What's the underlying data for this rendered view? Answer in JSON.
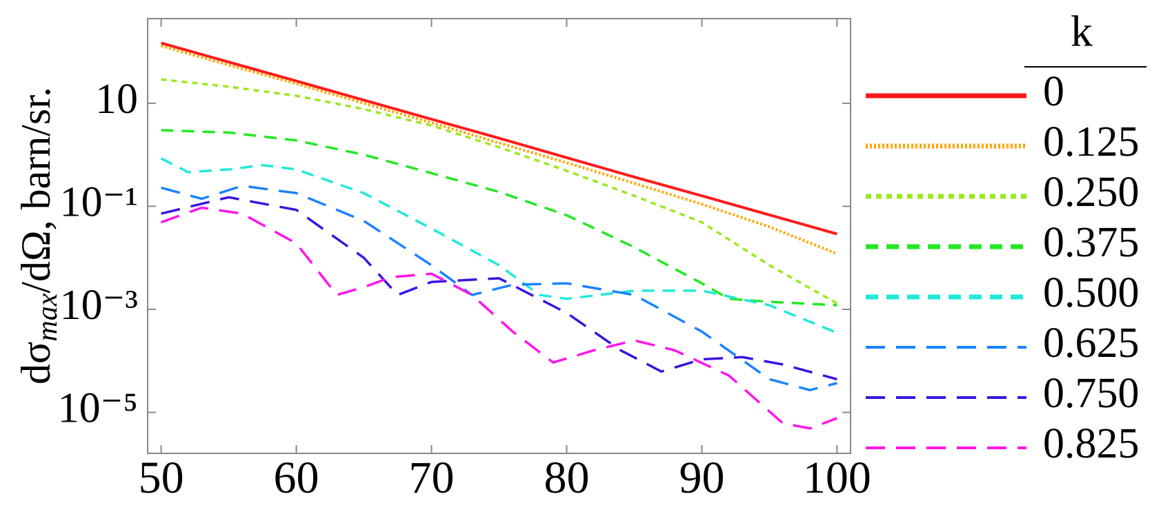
{
  "chart_data": {
    "type": "line",
    "y_label": [
      "dσ",
      "max",
      "/dΩ, barn/sr."
    ],
    "legend_title": "k",
    "y_scale": "log",
    "xlim": [
      49,
      101
    ],
    "xticks": [
      50,
      60,
      70,
      80,
      90,
      100
    ],
    "ylim": [
      1.6e-06,
      440
    ],
    "yticks": [
      {
        "value": 10,
        "label": "10"
      },
      {
        "value": 0.1,
        "label": "10⁻¹"
      },
      {
        "value": 0.001,
        "label": "10⁻³"
      },
      {
        "value": 1e-05,
        "label": "10⁻⁵"
      }
    ],
    "series": [
      {
        "name": "0",
        "color": "#ff1a1a",
        "style": "solid",
        "x": [
          50,
          55,
          60,
          65,
          70,
          75,
          80,
          85,
          90,
          95,
          100
        ],
        "values": [
          148,
          63,
          27,
          11.5,
          4.9,
          2.1,
          0.88,
          0.37,
          0.16,
          0.068,
          0.029
        ]
      },
      {
        "name": "0.125",
        "color": "#ffa500",
        "style": "dotted",
        "x": [
          50,
          55,
          60,
          65,
          70,
          75,
          80,
          85,
          90,
          95,
          100
        ],
        "values": [
          130,
          55,
          24,
          10,
          4.2,
          1.7,
          0.7,
          0.28,
          0.11,
          0.04,
          0.012
        ]
      },
      {
        "name": "0.250",
        "color": "#9be81e",
        "style": "short",
        "x": [
          50,
          55,
          60,
          65,
          70,
          75,
          80,
          85,
          90,
          95,
          100
        ],
        "values": [
          29,
          21,
          14,
          7.7,
          3.7,
          1.4,
          0.49,
          0.16,
          0.049,
          0.0072,
          0.0013
        ]
      },
      {
        "name": "0.375",
        "color": "#22e822",
        "style": "dashed",
        "x": [
          50,
          55,
          60,
          65,
          70,
          75,
          80,
          85,
          90,
          92,
          95,
          100
        ],
        "values": [
          3.0,
          2.7,
          1.9,
          1.0,
          0.44,
          0.19,
          0.067,
          0.016,
          0.0032,
          0.0016,
          0.0014,
          0.0012
        ]
      },
      {
        "name": "0.500",
        "color": "#22e8d8",
        "style": "dashed",
        "x": [
          50,
          52,
          55,
          57.5,
          60,
          65,
          70,
          75,
          78,
          80,
          85,
          90,
          95,
          100
        ],
        "values": [
          0.85,
          0.46,
          0.52,
          0.63,
          0.52,
          0.18,
          0.037,
          0.0072,
          0.0019,
          0.0016,
          0.0023,
          0.0023,
          0.0012,
          0.00035
        ]
      },
      {
        "name": "0.625",
        "color": "#1a82ff",
        "style": "long",
        "x": [
          50,
          53,
          56,
          60,
          65,
          70,
          73,
          76,
          80,
          85,
          90,
          95,
          98,
          100
        ],
        "values": [
          0.23,
          0.14,
          0.25,
          0.18,
          0.052,
          0.0072,
          0.0019,
          0.003,
          0.0032,
          0.0019,
          0.00037,
          4.4e-05,
          2.7e-05,
          3.7e-05
        ]
      },
      {
        "name": "0.750",
        "color": "#3a14e0",
        "style": "long",
        "x": [
          50,
          55,
          60,
          65,
          67.5,
          70,
          75,
          80,
          84,
          87,
          90,
          93,
          96,
          100
        ],
        "values": [
          0.072,
          0.15,
          0.085,
          0.01,
          0.0019,
          0.0034,
          0.004,
          0.00085,
          0.00016,
          6.2e-05,
          0.000107,
          0.000118,
          8.5e-05,
          4.4e-05
        ]
      },
      {
        "name": "0.825",
        "color": "#ff14e8",
        "style": "long",
        "x": [
          50,
          53,
          56,
          60,
          63,
          65,
          67,
          70,
          73,
          76,
          79,
          82,
          85,
          88,
          92,
          96,
          98,
          100
        ],
        "values": [
          0.049,
          0.094,
          0.072,
          0.019,
          0.0019,
          0.0027,
          0.0042,
          0.0049,
          0.0019,
          0.00037,
          9.3e-05,
          0.00016,
          0.00025,
          0.00016,
          5.2e-05,
          6.1e-06,
          4.9e-06,
          7.7e-06
        ]
      }
    ]
  }
}
